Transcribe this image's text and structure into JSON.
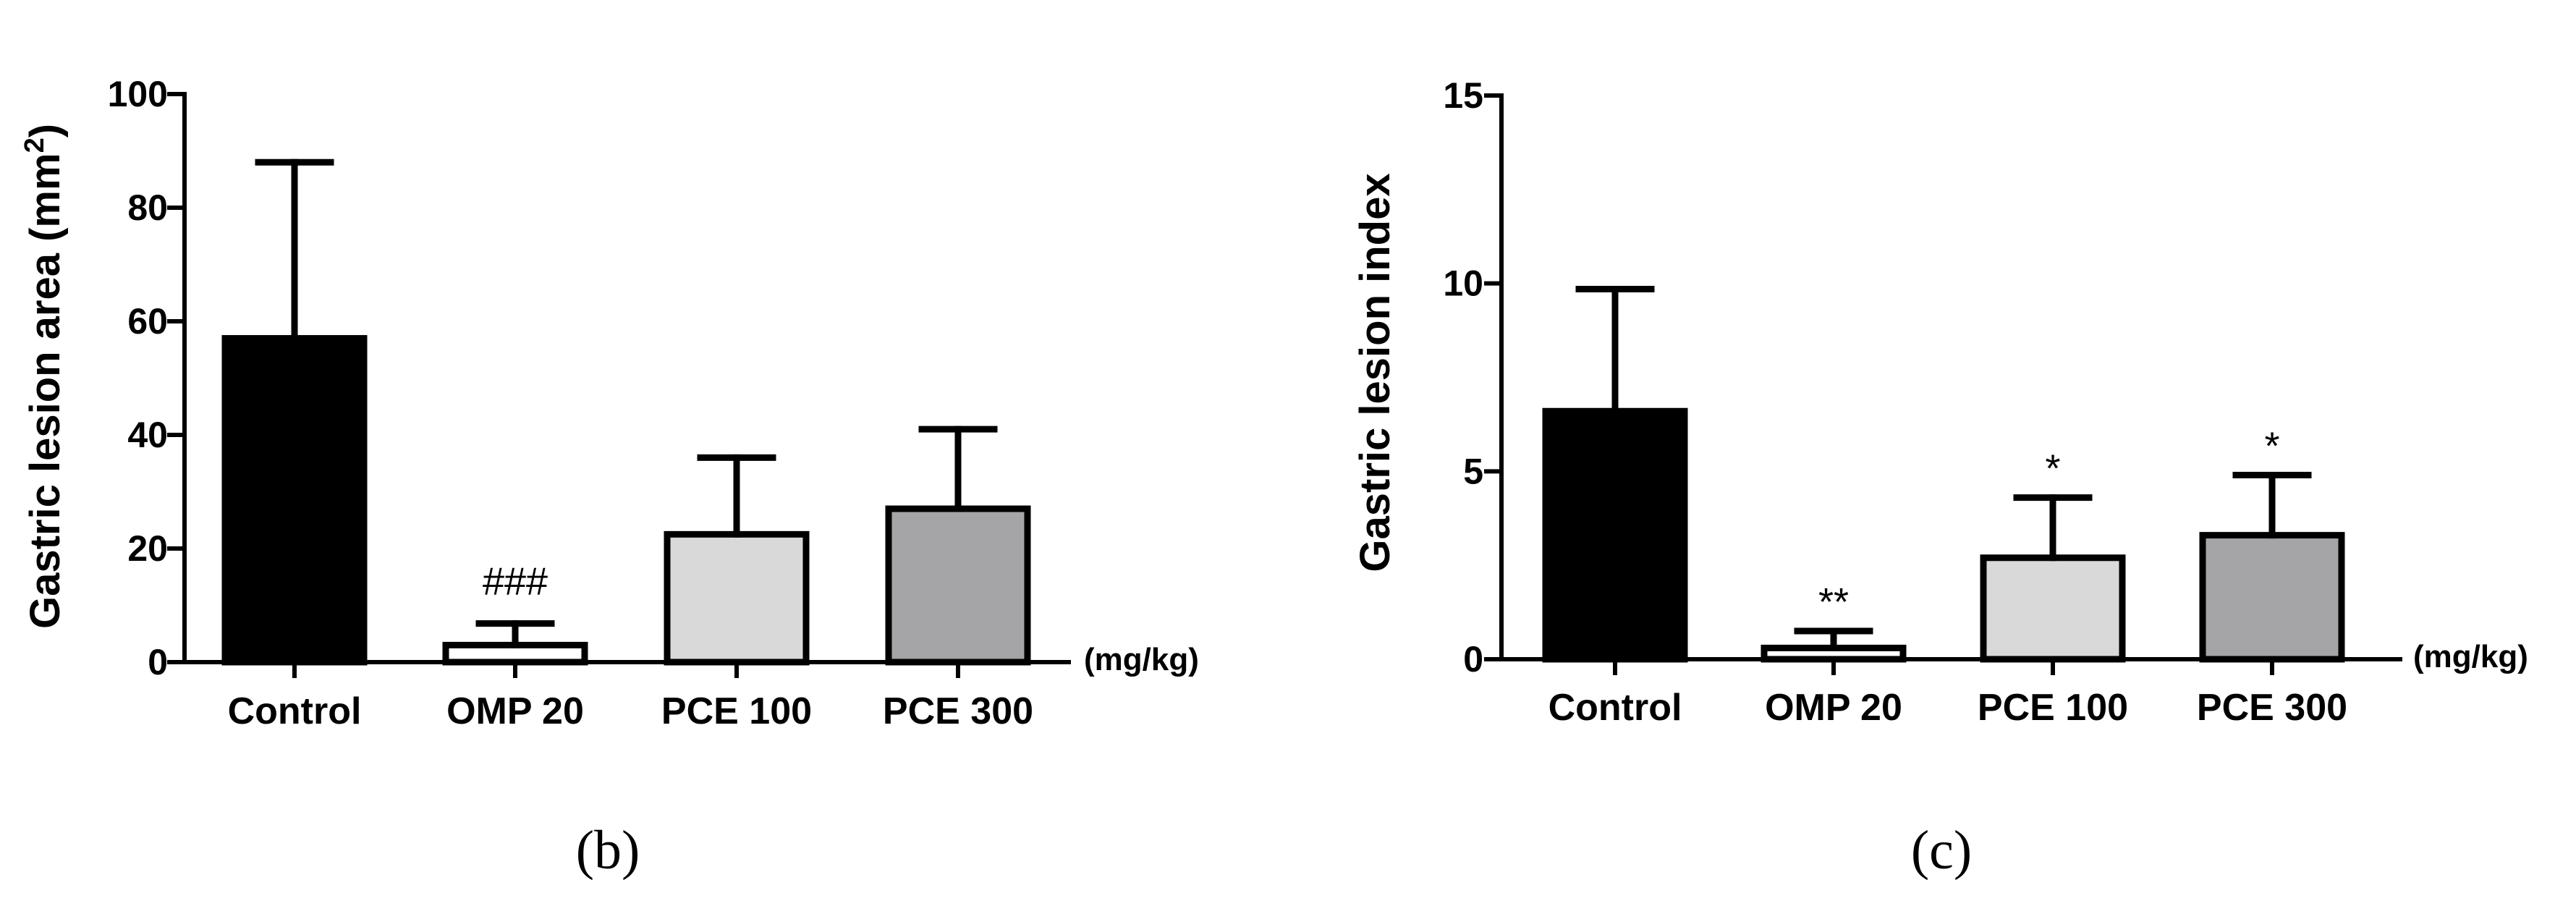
{
  "colors": {
    "axis": "#000000",
    "bar_outline": "#000000",
    "control_fill": "#000000",
    "omp_fill": "#ffffff",
    "pce100_fill": "#d9d9d9",
    "pce300_fill": "#a5a5a7"
  },
  "chart_data": [
    {
      "type": "bar",
      "panel_label": "(b)",
      "title": "",
      "xlabel": "",
      "ylabel_main": "Gastric lesion area (mm",
      "ylabel_sup": "2",
      "ylabel_close": ")",
      "unit_label": "(mg/kg)",
      "ylim": [
        0,
        100
      ],
      "yticks": [
        0,
        20,
        40,
        60,
        80,
        100
      ],
      "ytick_labels": [
        "0",
        "20",
        "40",
        "60",
        "80",
        "100"
      ],
      "categories": [
        "Control",
        "OMP 20",
        "PCE 100",
        "PCE 300"
      ],
      "values": [
        57,
        3,
        22.5,
        27
      ],
      "errors": [
        31,
        3.8,
        13.5,
        14
      ],
      "significance": [
        "",
        "###",
        "",
        ""
      ],
      "fills": [
        "#000000",
        "#ffffff",
        "#d9d9d9",
        "#a5a5a7"
      ]
    },
    {
      "type": "bar",
      "panel_label": "(c)",
      "title": "",
      "xlabel": "",
      "ylabel_main": "Gastric lesion index",
      "ylabel_sup": "",
      "ylabel_close": "",
      "unit_label": "(mg/kg)",
      "ylim": [
        0,
        15
      ],
      "yticks": [
        0,
        5,
        10,
        15
      ],
      "ytick_labels": [
        "0",
        "5",
        "10",
        "15"
      ],
      "categories": [
        "Control",
        "OMP 20",
        "PCE 100",
        "PCE 300"
      ],
      "values": [
        6.6,
        0.3,
        2.7,
        3.3
      ],
      "errors": [
        3.25,
        0.45,
        1.6,
        1.6
      ],
      "significance": [
        "",
        "**",
        "*",
        "*"
      ],
      "fills": [
        "#000000",
        "#ffffff",
        "#d9d9d9",
        "#a5a5a7"
      ]
    }
  ]
}
